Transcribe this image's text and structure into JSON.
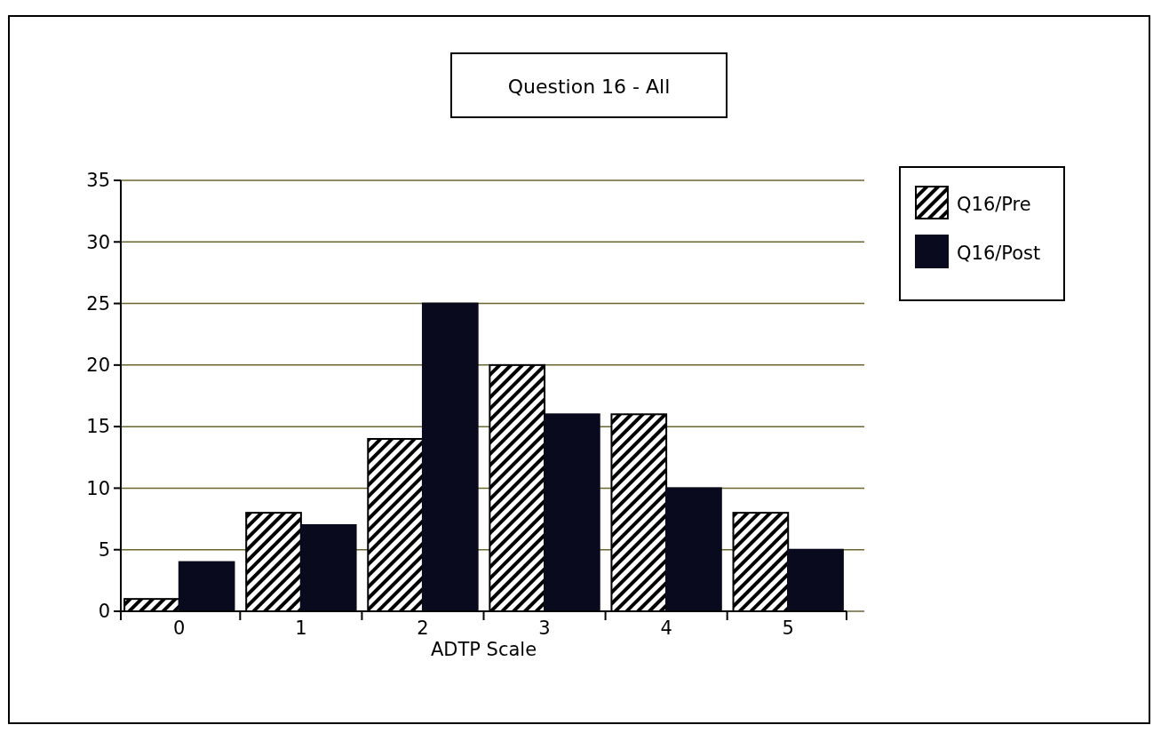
{
  "chart_data": {
    "type": "bar",
    "title": "Question 16 - All",
    "xlabel": "ADTP Scale",
    "categories": [
      "0",
      "1",
      "2",
      "3",
      "4",
      "5"
    ],
    "series": [
      {
        "name": "Q16/Pre",
        "color": "#000000",
        "values": [
          1,
          8,
          14,
          20,
          16,
          8
        ]
      },
      {
        "name": "Q16/Post",
        "color": "#0a0a1e",
        "values": [
          4,
          7,
          25,
          16,
          10,
          5
        ]
      }
    ],
    "ylim": [
      0,
      35
    ],
    "yticks": [
      0,
      5,
      10,
      15,
      20,
      25,
      30,
      35
    ],
    "grid": "y",
    "legend": "right"
  }
}
